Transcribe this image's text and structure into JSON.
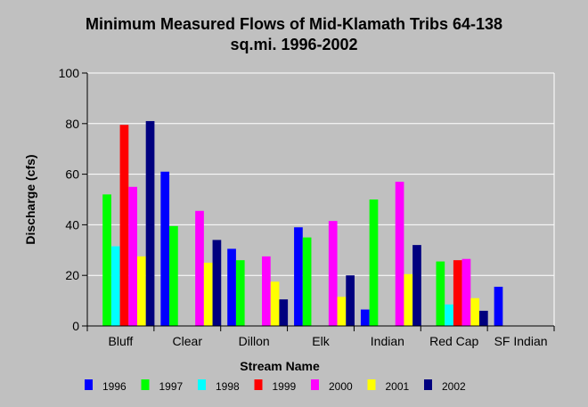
{
  "chart_data": {
    "type": "bar",
    "title": [
      "Minimum Measured Flows of Mid-Klamath Tribs 64-138",
      "sq.mi. 1996-2002"
    ],
    "xlabel": "Stream Name",
    "ylabel": "Discharge (cfs)",
    "ylim": [
      0,
      100
    ],
    "yticks": [
      0,
      20,
      40,
      60,
      80,
      100
    ],
    "grid": true,
    "legend_position": "bottom",
    "categories": [
      "Bluff",
      "Clear",
      "Dillon",
      "Elk",
      "Indian",
      "Red Cap",
      "SF Indian"
    ],
    "series": [
      {
        "name": "1996",
        "color": "#0000ff",
        "values": [
          null,
          61,
          30.5,
          39,
          6.5,
          null,
          15.5
        ]
      },
      {
        "name": "1997",
        "color": "#00ff00",
        "values": [
          52,
          39.5,
          26,
          35,
          50,
          25.5,
          null
        ]
      },
      {
        "name": "1998",
        "color": "#00ffff",
        "values": [
          31.5,
          null,
          null,
          null,
          null,
          8.5,
          null
        ]
      },
      {
        "name": "1999",
        "color": "#ff0000",
        "values": [
          79.5,
          null,
          null,
          null,
          null,
          26,
          null
        ]
      },
      {
        "name": "2000",
        "color": "#ff00ff",
        "values": [
          55,
          45.5,
          27.5,
          41.5,
          57,
          26.5,
          null
        ]
      },
      {
        "name": "2001",
        "color": "#ffff00",
        "values": [
          27.5,
          25,
          17.5,
          11.5,
          20.5,
          11,
          null
        ]
      },
      {
        "name": "2002",
        "color": "#00007f",
        "values": [
          81,
          34,
          10.5,
          20,
          32,
          6,
          null
        ]
      }
    ]
  }
}
